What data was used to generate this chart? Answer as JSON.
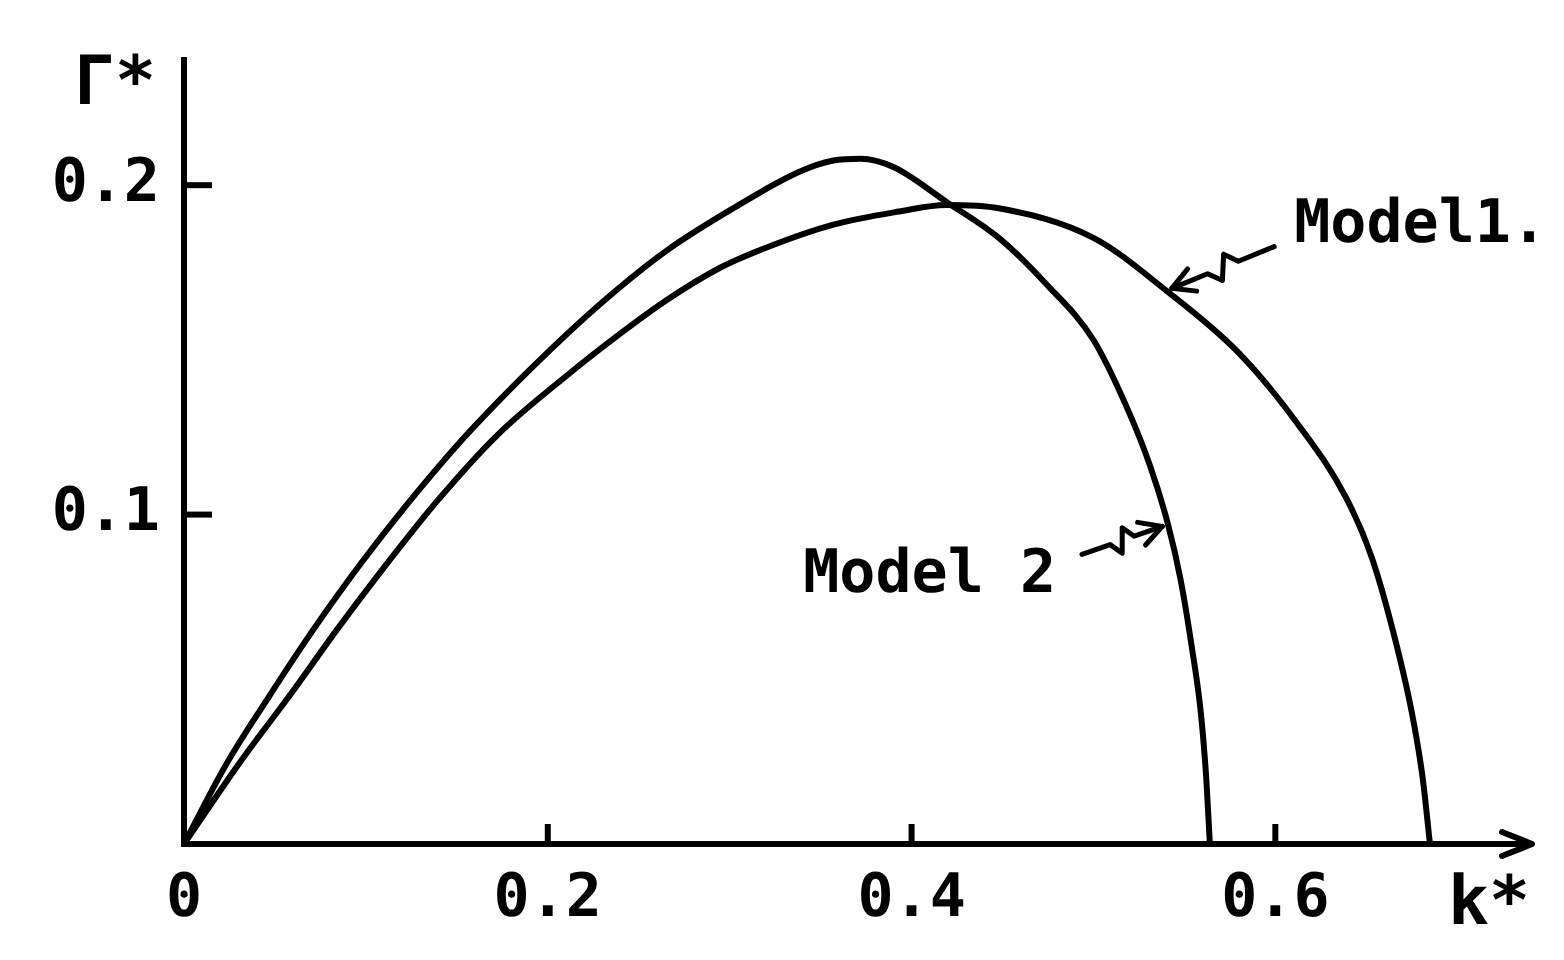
{
  "chart_data": {
    "type": "line",
    "xlabel": "k*",
    "ylabel": "Γ*",
    "xlim": [
      0,
      0.74
    ],
    "ylim": [
      0,
      0.238
    ],
    "xticks": [
      0,
      0.2,
      0.4,
      0.6
    ],
    "yticks": [
      0.1,
      0.2
    ],
    "series": [
      {
        "name": "Model1.",
        "color": "#000000",
        "x": [
          0,
          0.031,
          0.058,
          0.084,
          0.11,
          0.139,
          0.172,
          0.21,
          0.24,
          0.265,
          0.295,
          0.32,
          0.357,
          0.393,
          0.419,
          0.448,
          0.5,
          0.54,
          0.58,
          0.613,
          0.639,
          0.653,
          0.665,
          0.675,
          0.681,
          0.685
        ],
        "values": [
          0,
          0.025,
          0.045,
          0.065,
          0.084,
          0.104,
          0.124,
          0.142,
          0.155,
          0.165,
          0.175,
          0.181,
          0.188,
          0.192,
          0.194,
          0.193,
          0.184,
          0.168,
          0.149,
          0.127,
          0.105,
          0.087,
          0.064,
          0.04,
          0.02,
          0
        ]
      },
      {
        "name": "Model 2",
        "color": "#000000",
        "x": [
          0,
          0.023,
          0.047,
          0.071,
          0.097,
          0.124,
          0.155,
          0.192,
          0.229,
          0.265,
          0.302,
          0.338,
          0.357,
          0.372,
          0.39,
          0.419,
          0.448,
          0.474,
          0.5,
          0.518,
          0.531,
          0.541,
          0.548,
          0.554,
          0.559,
          0.562,
          0.564
        ],
        "values": [
          0,
          0.024,
          0.045,
          0.065,
          0.085,
          0.104,
          0.124,
          0.145,
          0.164,
          0.18,
          0.193,
          0.204,
          0.2075,
          0.208,
          0.2055,
          0.195,
          0.184,
          0.17,
          0.153,
          0.133,
          0.115,
          0.097,
          0.08,
          0.06,
          0.04,
          0.02,
          0
        ]
      }
    ]
  }
}
